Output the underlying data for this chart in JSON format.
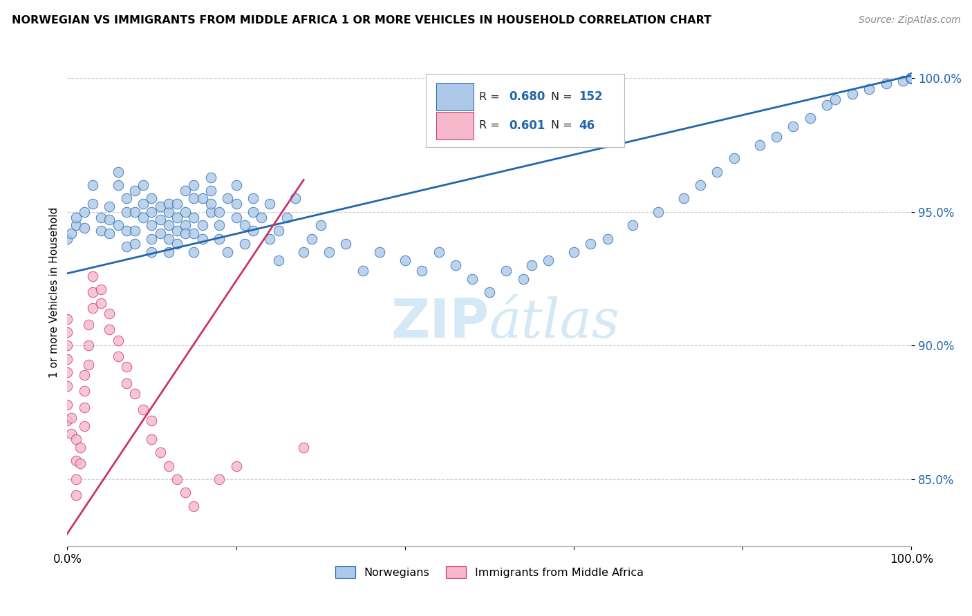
{
  "title": "NORWEGIAN VS IMMIGRANTS FROM MIDDLE AFRICA 1 OR MORE VEHICLES IN HOUSEHOLD CORRELATION CHART",
  "source": "Source: ZipAtlas.com",
  "ylabel": "1 or more Vehicles in Household",
  "xlim": [
    0.0,
    1.0
  ],
  "ylim": [
    0.825,
    1.015
  ],
  "ytick_labels": [
    "85.0%",
    "90.0%",
    "95.0%",
    "100.0%"
  ],
  "ytick_values": [
    0.85,
    0.9,
    0.95,
    1.0
  ],
  "blue_R": 0.68,
  "blue_N": 152,
  "pink_R": 0.601,
  "pink_N": 46,
  "blue_color": "#adc8e8",
  "pink_color": "#f5b8cb",
  "blue_line_color": "#2166ac",
  "pink_line_color": "#cc3366",
  "legend_blue_fill": "#adc8e8",
  "legend_pink_fill": "#f5b8cb",
  "watermark_color": "#d5e8f5",
  "blue_scatter_x": [
    0.0,
    0.005,
    0.01,
    0.01,
    0.02,
    0.02,
    0.03,
    0.03,
    0.04,
    0.04,
    0.05,
    0.05,
    0.05,
    0.06,
    0.06,
    0.06,
    0.07,
    0.07,
    0.07,
    0.07,
    0.08,
    0.08,
    0.08,
    0.08,
    0.09,
    0.09,
    0.09,
    0.1,
    0.1,
    0.1,
    0.1,
    0.1,
    0.11,
    0.11,
    0.11,
    0.12,
    0.12,
    0.12,
    0.12,
    0.12,
    0.13,
    0.13,
    0.13,
    0.13,
    0.14,
    0.14,
    0.14,
    0.14,
    0.15,
    0.15,
    0.15,
    0.15,
    0.15,
    0.16,
    0.16,
    0.16,
    0.17,
    0.17,
    0.17,
    0.17,
    0.18,
    0.18,
    0.18,
    0.19,
    0.19,
    0.2,
    0.2,
    0.2,
    0.21,
    0.21,
    0.22,
    0.22,
    0.22,
    0.23,
    0.24,
    0.24,
    0.25,
    0.25,
    0.26,
    0.27,
    0.28,
    0.29,
    0.3,
    0.31,
    0.33,
    0.35,
    0.37,
    0.4,
    0.42,
    0.44,
    0.46,
    0.48,
    0.5,
    0.52,
    0.54,
    0.55,
    0.57,
    0.6,
    0.62,
    0.64,
    0.67,
    0.7,
    0.73,
    0.75,
    0.77,
    0.79,
    0.82,
    0.84,
    0.86,
    0.88,
    0.9,
    0.91,
    0.93,
    0.95,
    0.97,
    0.99,
    1.0,
    1.0,
    1.0,
    1.0,
    1.0,
    1.0,
    1.0,
    1.0,
    1.0,
    1.0,
    1.0,
    1.0,
    1.0,
    1.0,
    1.0,
    1.0,
    1.0,
    1.0,
    1.0,
    1.0,
    1.0,
    1.0,
    1.0,
    1.0,
    1.0,
    1.0,
    1.0,
    1.0,
    1.0,
    1.0,
    1.0,
    1.0,
    1.0,
    1.0,
    1.0,
    1.0
  ],
  "blue_scatter_y": [
    0.94,
    0.942,
    0.945,
    0.948,
    0.95,
    0.944,
    0.96,
    0.953,
    0.948,
    0.943,
    0.942,
    0.947,
    0.952,
    0.965,
    0.96,
    0.945,
    0.955,
    0.95,
    0.943,
    0.937,
    0.938,
    0.943,
    0.958,
    0.95,
    0.96,
    0.953,
    0.948,
    0.935,
    0.94,
    0.945,
    0.95,
    0.955,
    0.942,
    0.947,
    0.952,
    0.935,
    0.94,
    0.945,
    0.95,
    0.953,
    0.938,
    0.943,
    0.948,
    0.953,
    0.958,
    0.945,
    0.95,
    0.942,
    0.955,
    0.96,
    0.948,
    0.942,
    0.935,
    0.94,
    0.945,
    0.955,
    0.95,
    0.953,
    0.958,
    0.963,
    0.945,
    0.95,
    0.94,
    0.935,
    0.955,
    0.948,
    0.953,
    0.96,
    0.945,
    0.938,
    0.95,
    0.955,
    0.943,
    0.948,
    0.94,
    0.953,
    0.932,
    0.943,
    0.948,
    0.955,
    0.935,
    0.94,
    0.945,
    0.935,
    0.938,
    0.928,
    0.935,
    0.932,
    0.928,
    0.935,
    0.93,
    0.925,
    0.92,
    0.928,
    0.925,
    0.93,
    0.932,
    0.935,
    0.938,
    0.94,
    0.945,
    0.95,
    0.955,
    0.96,
    0.965,
    0.97,
    0.975,
    0.978,
    0.982,
    0.985,
    0.99,
    0.992,
    0.994,
    0.996,
    0.998,
    0.999,
    1.0,
    1.0,
    1.0,
    1.0,
    1.0,
    1.0,
    1.0,
    1.0,
    1.0,
    1.0,
    1.0,
    1.0,
    1.0,
    1.0,
    1.0,
    1.0,
    1.0,
    1.0,
    1.0,
    1.0,
    1.0,
    1.0,
    1.0,
    1.0,
    1.0,
    1.0,
    1.0,
    1.0,
    1.0,
    1.0,
    1.0,
    1.0,
    1.0,
    1.0,
    1.0,
    1.0
  ],
  "pink_scatter_x": [
    0.0,
    0.0,
    0.0,
    0.0,
    0.0,
    0.0,
    0.0,
    0.0,
    0.005,
    0.005,
    0.01,
    0.01,
    0.01,
    0.01,
    0.015,
    0.015,
    0.02,
    0.02,
    0.02,
    0.02,
    0.025,
    0.025,
    0.025,
    0.03,
    0.03,
    0.03,
    0.04,
    0.04,
    0.05,
    0.05,
    0.06,
    0.06,
    0.07,
    0.07,
    0.08,
    0.09,
    0.1,
    0.1,
    0.11,
    0.12,
    0.13,
    0.14,
    0.15,
    0.18,
    0.2,
    0.28
  ],
  "pink_scatter_y": [
    0.91,
    0.905,
    0.9,
    0.895,
    0.89,
    0.885,
    0.878,
    0.872,
    0.867,
    0.873,
    0.865,
    0.857,
    0.85,
    0.844,
    0.856,
    0.862,
    0.87,
    0.877,
    0.883,
    0.889,
    0.893,
    0.9,
    0.908,
    0.914,
    0.92,
    0.926,
    0.921,
    0.916,
    0.912,
    0.906,
    0.902,
    0.896,
    0.892,
    0.886,
    0.882,
    0.876,
    0.872,
    0.865,
    0.86,
    0.855,
    0.85,
    0.845,
    0.84,
    0.85,
    0.855,
    0.862
  ],
  "blue_line_x0": 0.0,
  "blue_line_x1": 1.0,
  "blue_line_y0": 0.927,
  "blue_line_y1": 1.001,
  "pink_line_x0": -0.01,
  "pink_line_x1": 0.28,
  "pink_line_y0": 0.825,
  "pink_line_y1": 0.962
}
